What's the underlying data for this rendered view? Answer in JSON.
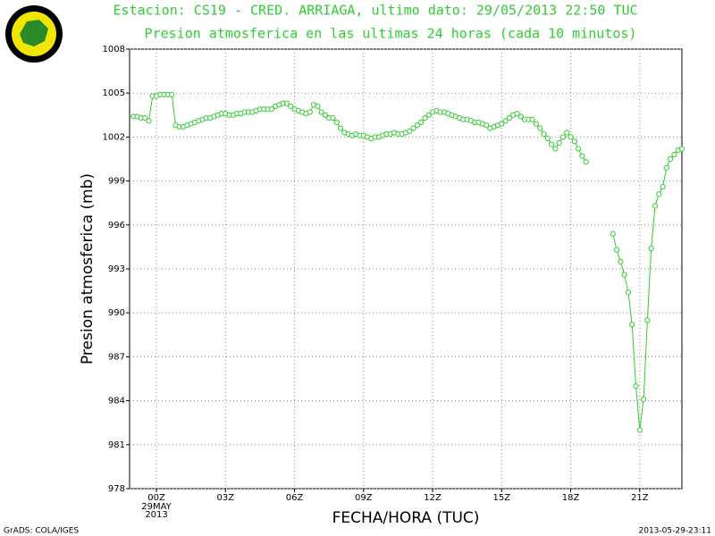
{
  "chart_data": {
    "type": "line",
    "title": "Estacion: CS19 - CRED. ARRIAGA, ultimo dato: 29/05/2013 22:50 TUC",
    "subtitle": "Presion atmosferica en las ultimas 24 horas (cada 10 minutos)",
    "ylabel": "Presion atmosferica (mb)",
    "xlabel": "FECHA/HORA (TUC)",
    "x_date_labels": [
      "29MAY",
      "2013"
    ],
    "footer_left": "GrADS: COLA/IGES",
    "footer_right": "2013-05-29-23:11",
    "grid": true,
    "color": "#33cc33",
    "xlim": [
      -70,
      1370
    ],
    "xticks": [
      {
        "value": 0,
        "label": "00Z"
      },
      {
        "value": 180,
        "label": "03Z"
      },
      {
        "value": 360,
        "label": "06Z"
      },
      {
        "value": 540,
        "label": "09Z"
      },
      {
        "value": 720,
        "label": "12Z"
      },
      {
        "value": 900,
        "label": "15Z"
      },
      {
        "value": 1080,
        "label": "18Z"
      },
      {
        "value": 1260,
        "label": "21Z"
      }
    ],
    "ylim": [
      978,
      1008
    ],
    "yticks": [
      978,
      981,
      984,
      987,
      990,
      993,
      996,
      999,
      1002,
      1005,
      1008
    ],
    "x": [
      -60,
      -50,
      -40,
      -30,
      -20,
      -10,
      0,
      10,
      20,
      30,
      40,
      50,
      60,
      70,
      80,
      90,
      100,
      110,
      120,
      130,
      140,
      150,
      160,
      170,
      180,
      190,
      200,
      210,
      220,
      230,
      240,
      250,
      260,
      270,
      280,
      290,
      300,
      310,
      320,
      330,
      340,
      350,
      360,
      370,
      380,
      390,
      400,
      410,
      420,
      430,
      440,
      450,
      460,
      470,
      480,
      490,
      500,
      510,
      520,
      530,
      540,
      550,
      560,
      570,
      580,
      590,
      600,
      610,
      620,
      630,
      640,
      650,
      660,
      670,
      680,
      690,
      700,
      710,
      720,
      730,
      740,
      750,
      760,
      770,
      780,
      790,
      800,
      810,
      820,
      830,
      840,
      850,
      860,
      870,
      880,
      890,
      900,
      910,
      920,
      930,
      940,
      950,
      960,
      970,
      980,
      990,
      1000,
      1010,
      1020,
      1030,
      1040,
      1050,
      1060,
      1070,
      1080,
      1090,
      1100,
      1110,
      1120,
      1130,
      1140,
      1150,
      1160,
      1170,
      1180,
      1190,
      1200,
      1210,
      1220,
      1230,
      1240,
      1250,
      1260,
      1270,
      1280,
      1290,
      1300,
      1310,
      1320,
      1330,
      1340,
      1350,
      1360,
      1370
    ],
    "values": [
      1003.4,
      1003.4,
      1003.3,
      1003.3,
      1003.1,
      1004.8,
      1004.8,
      1004.9,
      1004.9,
      1004.9,
      1004.9,
      1002.8,
      1002.7,
      1002.7,
      1002.8,
      1002.9,
      1003.0,
      1003.1,
      1003.2,
      1003.3,
      1003.3,
      1003.4,
      1003.5,
      1003.6,
      1003.6,
      1003.5,
      1003.5,
      1003.6,
      1003.6,
      1003.7,
      1003.7,
      1003.7,
      1003.8,
      1003.9,
      1003.9,
      1003.9,
      1003.9,
      1004.1,
      1004.2,
      1004.3,
      1004.3,
      1004.1,
      1003.9,
      1003.8,
      1003.7,
      1003.6,
      1003.7,
      1004.2,
      1004.1,
      1003.7,
      1003.5,
      1003.3,
      1003.3,
      1003.0,
      1002.6,
      1002.3,
      1002.2,
      1002.1,
      1002.2,
      1002.1,
      1002.1,
      1002.0,
      1001.9,
      1002.0,
      1002.0,
      1002.1,
      1002.2,
      1002.2,
      1002.3,
      1002.2,
      1002.2,
      1002.3,
      1002.4,
      1002.6,
      1002.8,
      1003.0,
      1003.3,
      1003.5,
      1003.7,
      1003.8,
      1003.7,
      1003.7,
      1003.6,
      1003.5,
      1003.4,
      1003.3,
      1003.2,
      1003.2,
      1003.1,
      1003.0,
      1003.0,
      1002.9,
      1002.8,
      1002.6,
      1002.7,
      1002.8,
      1002.9,
      1003.1,
      1003.3,
      1003.5,
      1003.6,
      1003.4,
      1003.2,
      1003.2,
      1003.2,
      1002.9,
      1002.6,
      1002.2,
      1001.9,
      1001.5,
      1001.2,
      1001.6,
      1002.0,
      1002.3,
      1002.0,
      1001.7,
      1001.2,
      1000.7,
      1000.3,
      null,
      null,
      null,
      null,
      null,
      null,
      995.4,
      994.3,
      993.5,
      992.6,
      991.4,
      989.2,
      985.0,
      982.0,
      984.1,
      989.5,
      994.4,
      997.3,
      998.1,
      998.6,
      999.9,
      1000.5,
      1000.8,
      1001.1,
      1001.2
    ]
  }
}
